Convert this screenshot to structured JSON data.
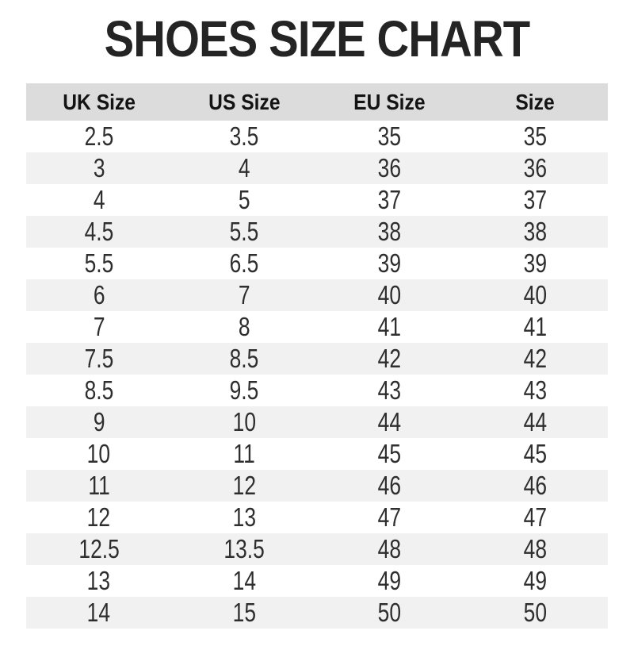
{
  "page": {
    "title": "SHOES SIZE CHART"
  },
  "chart_data": {
    "type": "table",
    "title": "SHOES SIZE CHART",
    "columns": [
      "UK Size",
      "US Size",
      "EU Size",
      "Size"
    ],
    "rows": [
      [
        "2.5",
        "3.5",
        "35",
        "35"
      ],
      [
        "3",
        "4",
        "36",
        "36"
      ],
      [
        "4",
        "5",
        "37",
        "37"
      ],
      [
        "4.5",
        "5.5",
        "38",
        "38"
      ],
      [
        "5.5",
        "6.5",
        "39",
        "39"
      ],
      [
        "6",
        "7",
        "40",
        "40"
      ],
      [
        "7",
        "8",
        "41",
        "41"
      ],
      [
        "7.5",
        "8.5",
        "42",
        "42"
      ],
      [
        "8.5",
        "9.5",
        "43",
        "43"
      ],
      [
        "9",
        "10",
        "44",
        "44"
      ],
      [
        "10",
        "11",
        "45",
        "45"
      ],
      [
        "11",
        "12",
        "46",
        "46"
      ],
      [
        "12",
        "13",
        "47",
        "47"
      ],
      [
        "12.5",
        "13.5",
        "48",
        "48"
      ],
      [
        "13",
        "14",
        "49",
        "49"
      ],
      [
        "14",
        "15",
        "50",
        "50"
      ]
    ],
    "layout": {
      "striped_rows": "even rows shaded",
      "grid": "off",
      "alignment": "center"
    }
  },
  "colors": {
    "page_bg": "#ffffff",
    "header_bg": "#dcdcdc",
    "stripe_bg": "#f1f1f1",
    "title_text": "#242424",
    "header_text": "#131313",
    "cell_text": "#2e2e2e"
  }
}
